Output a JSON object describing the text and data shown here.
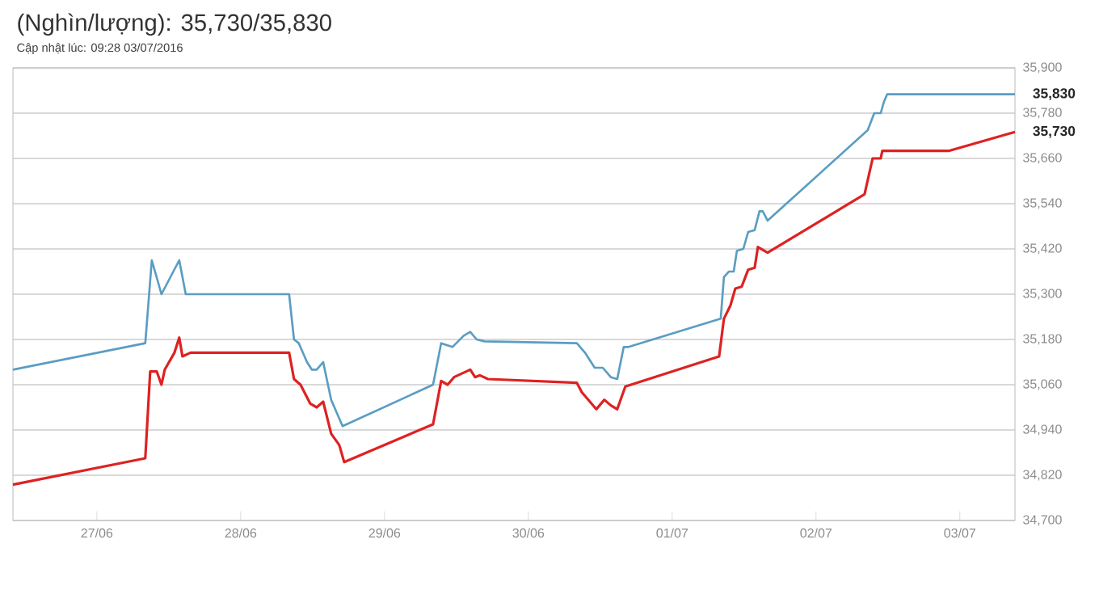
{
  "chart_data": {
    "type": "line",
    "title": "(Nghìn/lượng): 35,730/35,830",
    "subtitle": "Cập nhật lúc: 09:28 03/07/2016",
    "xlim": [
      "2016-06-26T10:00",
      "2016-07-03T09:12"
    ],
    "xticks": [
      {
        "value": "2016-06-27",
        "label": "27/06"
      },
      {
        "value": "2016-06-28",
        "label": "28/06"
      },
      {
        "value": "2016-06-29",
        "label": "29/06"
      },
      {
        "value": "2016-06-30",
        "label": "30/06"
      },
      {
        "value": "2016-07-01",
        "label": "01/07"
      },
      {
        "value": "2016-07-02",
        "label": "02/07"
      },
      {
        "value": "2016-07-03",
        "label": "03/07"
      }
    ],
    "ylim": [
      34700,
      35900
    ],
    "yticks": [
      {
        "value": 34700,
        "label": "34,700"
      },
      {
        "value": 34820,
        "label": "34,820"
      },
      {
        "value": 34940,
        "label": "34,940"
      },
      {
        "value": 35060,
        "label": "35,060"
      },
      {
        "value": 35180,
        "label": "35,180"
      },
      {
        "value": 35300,
        "label": "35,300"
      },
      {
        "value": 35420,
        "label": "35,420"
      },
      {
        "value": 35540,
        "label": "35,540"
      },
      {
        "value": 35660,
        "label": "35,660"
      },
      {
        "value": 35780,
        "label": "35,780"
      },
      {
        "value": 35900,
        "label": "35,900"
      }
    ],
    "grid": "y",
    "series": [
      {
        "color": "#5b9dc2",
        "x": [
          "2016-06-26T10:00",
          "2016-06-27T08:05",
          "2016-06-27T09:10",
          "2016-06-27T10:47",
          "2016-06-27T13:45",
          "2016-06-27T14:50",
          "2016-06-28T08:05",
          "2016-06-28T08:54",
          "2016-06-28T09:42",
          "2016-06-28T11:04",
          "2016-06-28T11:52",
          "2016-06-28T12:41",
          "2016-06-28T13:46",
          "2016-06-28T15:06",
          "2016-06-28T17:00",
          "2016-06-29T08:06",
          "2016-06-29T09:27",
          "2016-06-29T11:20",
          "2016-06-29T13:13",
          "2016-06-29T14:18",
          "2016-06-29T15:23",
          "2016-06-29T16:43",
          "2016-06-30T08:06",
          "2016-06-30T09:27",
          "2016-06-30T11:04",
          "2016-06-30T12:25",
          "2016-06-30T13:46",
          "2016-06-30T14:50",
          "2016-06-30T15:55",
          "2016-06-30T16:43",
          "2016-07-01T08:06",
          "2016-07-01T08:38",
          "2016-07-01T09:27",
          "2016-07-01T10:16",
          "2016-07-01T10:48",
          "2016-07-01T11:52",
          "2016-07-01T12:41",
          "2016-07-01T13:46",
          "2016-07-01T14:34",
          "2016-07-01T15:07",
          "2016-07-01T15:55",
          "2016-07-02T08:38",
          "2016-07-02T09:43",
          "2016-07-02T10:48",
          "2016-07-02T11:20",
          "2016-07-02T11:52",
          "2016-07-03T09:12"
        ],
        "values": [
          35100,
          35170,
          35390,
          35300,
          35390,
          35300,
          35300,
          35180,
          35170,
          35120,
          35100,
          35100,
          35120,
          35020,
          34950,
          35060,
          35170,
          35160,
          35190,
          35200,
          35180,
          35175,
          35170,
          35145,
          35105,
          35105,
          35080,
          35075,
          35160,
          35160,
          35235,
          35345,
          35360,
          35360,
          35415,
          35420,
          35465,
          35470,
          35520,
          35520,
          35495,
          35735,
          35780,
          35780,
          35810,
          35830,
          35830
        ],
        "value_labels": [
          null,
          null,
          null,
          null,
          null,
          null,
          null,
          null,
          null,
          null,
          null,
          null,
          null,
          null,
          null,
          null,
          null,
          null,
          null,
          null,
          null,
          null,
          null,
          null,
          null,
          null,
          null,
          null,
          null,
          null,
          null,
          null,
          null,
          null,
          null,
          null,
          null,
          null,
          null,
          null,
          null,
          null,
          null,
          null,
          null,
          null,
          "35,830"
        ]
      },
      {
        "color": "#dd2222",
        "x": [
          "2016-06-26T10:00",
          "2016-06-27T08:05",
          "2016-06-27T08:54",
          "2016-06-27T10:00",
          "2016-06-27T10:47",
          "2016-06-27T11:20",
          "2016-06-27T12:57",
          "2016-06-27T13:45",
          "2016-06-27T14:17",
          "2016-06-27T15:38",
          "2016-06-28T08:05",
          "2016-06-28T08:54",
          "2016-06-28T09:59",
          "2016-06-28T11:36",
          "2016-06-28T12:41",
          "2016-06-28T13:46",
          "2016-06-28T15:06",
          "2016-06-28T16:27",
          "2016-06-28T17:16",
          "2016-06-29T08:06",
          "2016-06-29T09:27",
          "2016-06-29T10:32",
          "2016-06-29T11:36",
          "2016-06-29T14:18",
          "2016-06-29T15:07",
          "2016-06-29T15:55",
          "2016-06-29T17:16",
          "2016-06-30T08:06",
          "2016-06-30T08:55",
          "2016-06-30T11:20",
          "2016-06-30T12:41",
          "2016-06-30T13:46",
          "2016-06-30T14:50",
          "2016-06-30T16:11",
          "2016-07-01T07:50",
          "2016-07-01T08:38",
          "2016-07-01T09:43",
          "2016-07-01T10:32",
          "2016-07-01T11:36",
          "2016-07-01T12:41",
          "2016-07-01T13:46",
          "2016-07-01T14:18",
          "2016-07-01T15:55",
          "2016-07-02T08:06",
          "2016-07-02T09:27",
          "2016-07-02T10:48",
          "2016-07-02T11:04",
          "2016-07-02T22:08",
          "2016-07-03T09:12"
        ],
        "values": [
          34795,
          34865,
          35095,
          35095,
          35060,
          35100,
          35145,
          35185,
          35135,
          35145,
          35145,
          35075,
          35060,
          35010,
          35000,
          35015,
          34930,
          34900,
          34855,
          34955,
          35070,
          35060,
          35080,
          35100,
          35080,
          35085,
          35075,
          35065,
          35040,
          34995,
          35020,
          35005,
          34995,
          35055,
          35135,
          35235,
          35270,
          35315,
          35320,
          35365,
          35370,
          35425,
          35410,
          35565,
          35660,
          35660,
          35680,
          35680,
          35730
        ],
        "value_labels": [
          null,
          null,
          null,
          null,
          null,
          null,
          null,
          null,
          null,
          null,
          null,
          null,
          null,
          null,
          null,
          null,
          null,
          null,
          null,
          null,
          null,
          null,
          null,
          null,
          null,
          null,
          null,
          null,
          null,
          null,
          null,
          null,
          null,
          null,
          null,
          null,
          null,
          null,
          null,
          null,
          null,
          null,
          null,
          null,
          null,
          null,
          null,
          null,
          "35,730"
        ]
      }
    ]
  }
}
